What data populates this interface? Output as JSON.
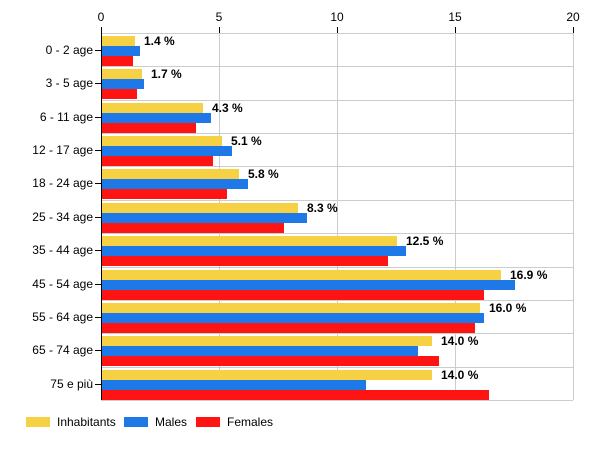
{
  "chart_data": {
    "type": "bar",
    "orientation": "horizontal",
    "title": "",
    "categories": [
      "0 - 2 age",
      "3 - 5 age",
      "6 - 11 age",
      "12 - 17 age",
      "18 - 24 age",
      "25 - 34 age",
      "35 - 44 age",
      "45 - 54 age",
      "55 - 64 age",
      "65 - 74 age",
      "75 e più"
    ],
    "series": [
      {
        "name": "Inhabitants",
        "color": "#F6D143",
        "values": [
          1.4,
          1.7,
          4.3,
          5.1,
          5.8,
          8.3,
          12.5,
          16.9,
          16.0,
          14.0,
          14.0
        ]
      },
      {
        "name": "Males",
        "color": "#1E78E8",
        "values": [
          1.6,
          1.8,
          4.6,
          5.5,
          6.2,
          8.7,
          12.9,
          17.5,
          16.2,
          13.4,
          11.2
        ]
      },
      {
        "name": "Females",
        "color": "#FF1414",
        "values": [
          1.3,
          1.5,
          4.0,
          4.7,
          5.3,
          7.7,
          12.1,
          16.2,
          15.8,
          14.3,
          16.4
        ]
      }
    ],
    "value_labels": [
      "1.4 %",
      "1.7 %",
      "4.3 %",
      "5.1 %",
      "5.8 %",
      "8.3 %",
      "12.5 %",
      "16.9 %",
      "16.0 %",
      "14.0 %",
      "14.0 %"
    ],
    "value_labels_refer_to": "Inhabitants",
    "xlim": [
      0,
      20
    ],
    "x_ticks": [
      "0",
      "5",
      "10",
      "15",
      "20"
    ],
    "grid": true,
    "legend_position": "bottom",
    "colors": {
      "grid": "#CCCCCC",
      "axis": "#000000",
      "background": "#FFFFFF",
      "text": "#000000"
    }
  },
  "legend": {
    "items": [
      {
        "label": "Inhabitants",
        "color": "#F6D143"
      },
      {
        "label": "Males",
        "color": "#1E78E8"
      },
      {
        "label": "Females",
        "color": "#FF1414"
      }
    ]
  }
}
